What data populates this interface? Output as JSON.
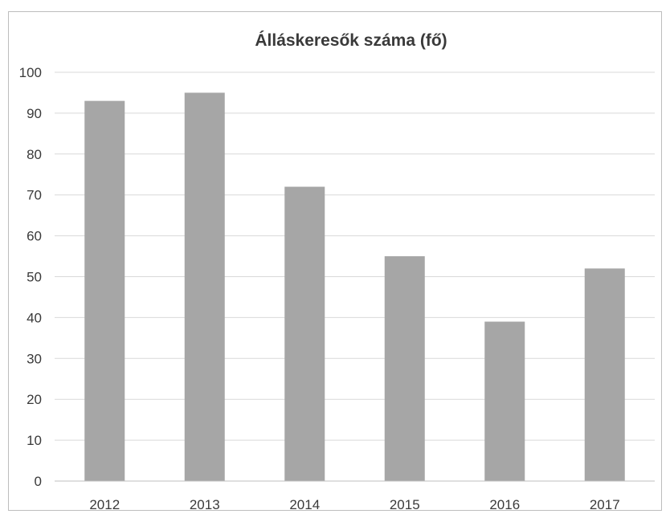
{
  "chart_data": {
    "type": "bar",
    "title": "Álláskeresők száma (fő)",
    "categories": [
      "2012",
      "2013",
      "2014",
      "2015",
      "2016",
      "2017"
    ],
    "values": [
      93,
      95,
      72,
      55,
      39,
      52
    ],
    "ylim": [
      0,
      100
    ],
    "yticks": [
      0,
      10,
      20,
      30,
      40,
      50,
      60,
      70,
      80,
      90,
      100
    ],
    "grid": true,
    "legend": "none",
    "bar_color": "#a6a6a6",
    "grid_color": "#d9d9d9"
  }
}
